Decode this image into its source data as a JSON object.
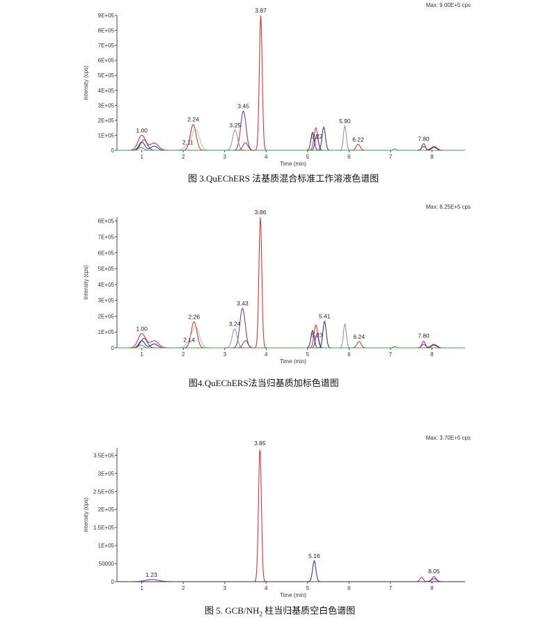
{
  "captions": {
    "fig3": "图  3.QuEChERS 法基质混合标准工作溶液色谱图",
    "fig4": "图4.QuEChERS法当归基质加标色谱图",
    "fig5_pre": "图  5. GCB/NH",
    "fig5_sub": "2",
    "fig5_post": " 柱当归基质空白色谱图"
  },
  "colors": {
    "red": "#c8202c",
    "purple": "#6a2a8a",
    "navy": "#23236e",
    "blue": "#3a3aa8",
    "green": "#2e9a4a",
    "gray": "#8a8a8a",
    "lightgray": "#b9b9b9",
    "orange": "#d88a48",
    "lightgreen": "#9fc79a"
  },
  "chart_data": [
    {
      "type": "line",
      "max_label": "Max: 9.00E+5 cps",
      "xlabel": "Time (min)",
      "ylabel": "Intensity (cps)",
      "xlim": [
        0.4,
        8.8
      ],
      "ylim": [
        0,
        900000
      ],
      "x_ticks": [
        1,
        2,
        3,
        4,
        5,
        6,
        7,
        8
      ],
      "y_ticks": [
        0,
        100000,
        200000,
        300000,
        400000,
        500000,
        600000,
        700000,
        800000,
        900000
      ],
      "y_tick_labels": [
        "0",
        "1E+05",
        "2E+05",
        "3E+05",
        "4E+05",
        "5E+05",
        "6E+05",
        "7E+05",
        "8E+05",
        "9E+05"
      ],
      "peak_labels": [
        {
          "label": "1.00",
          "x": 1.0,
          "y": 100000
        },
        {
          "label": "2.11",
          "x": 2.11,
          "y": 20000
        },
        {
          "label": "2.24",
          "x": 2.24,
          "y": 175000
        },
        {
          "label": "3.25",
          "x": 3.25,
          "y": 135000
        },
        {
          "label": "3.45",
          "x": 3.45,
          "y": 262000
        },
        {
          "label": "3.87",
          "x": 3.87,
          "y": 900000
        },
        {
          "label": "5.22",
          "x": 5.22,
          "y": 60000
        },
        {
          "label": "5.90",
          "x": 5.9,
          "y": 162000
        },
        {
          "label": "6.22",
          "x": 6.22,
          "y": 40000
        },
        {
          "label": "7.80",
          "x": 7.8,
          "y": 45000
        }
      ],
      "series": [
        {
          "color": "red",
          "peaks": [
            [
              1.0,
              100000,
              0.09
            ],
            [
              1.3,
              48000,
              0.1
            ],
            [
              2.24,
              172000,
              0.07
            ],
            [
              3.5,
              50000,
              0.06
            ],
            [
              3.87,
              900000,
              0.035
            ],
            [
              5.2,
              150000,
              0.045
            ],
            [
              6.22,
              40000,
              0.05
            ],
            [
              7.8,
              25000,
              0.05
            ],
            [
              8.05,
              25000,
              0.07
            ]
          ]
        },
        {
          "color": "purple",
          "peaks": [
            [
              1.05,
              70000,
              0.08
            ],
            [
              3.45,
              262000,
              0.065
            ],
            [
              5.22,
              100000,
              0.04
            ],
            [
              7.8,
              45000,
              0.04
            ]
          ]
        },
        {
          "color": "navy",
          "peaks": [
            [
              1.0,
              55000,
              0.07
            ],
            [
              1.3,
              28000,
              0.08
            ],
            [
              5.12,
              120000,
              0.04
            ],
            [
              5.39,
              155000,
              0.04
            ],
            [
              8.05,
              20000,
              0.06
            ]
          ]
        },
        {
          "color": "gray",
          "peaks": [
            [
              3.25,
              135000,
              0.06
            ],
            [
              5.9,
              162000,
              0.035
            ]
          ]
        },
        {
          "color": "lightgray",
          "peaks": [
            [
              2.11,
              28000,
              0.09
            ],
            [
              2.3,
              140000,
              0.09
            ]
          ]
        },
        {
          "color": "green",
          "peaks": [
            [
              0.98,
              20000,
              0.06
            ],
            [
              7.1,
              10000,
              0.03
            ]
          ]
        }
      ]
    },
    {
      "type": "line",
      "max_label": "Max: 8.25E+5 cps",
      "xlabel": "Time (min)",
      "ylabel": "Intensity (cps)",
      "xlim": [
        0.4,
        8.8
      ],
      "ylim": [
        0,
        825000
      ],
      "x_ticks": [
        1,
        2,
        3,
        4,
        5,
        6,
        7,
        8
      ],
      "y_ticks": [
        0,
        100000,
        200000,
        300000,
        400000,
        500000,
        600000,
        700000,
        800000
      ],
      "y_tick_labels": [
        "0",
        "1E+05",
        "2E+05",
        "3E+05",
        "4E+05",
        "5E+05",
        "6E+05",
        "7E+05",
        "8E+05"
      ],
      "peak_labels": [
        {
          "label": "1.00",
          "x": 1.0,
          "y": 90000
        },
        {
          "label": "2.14",
          "x": 2.14,
          "y": 20000
        },
        {
          "label": "2.26",
          "x": 2.26,
          "y": 165000
        },
        {
          "label": "3.24",
          "x": 3.24,
          "y": 120000
        },
        {
          "label": "3.43",
          "x": 3.43,
          "y": 250000
        },
        {
          "label": "3.86",
          "x": 3.86,
          "y": 825000
        },
        {
          "label": "5.23",
          "x": 5.23,
          "y": 50000
        },
        {
          "label": "5.41",
          "x": 5.41,
          "y": 168000
        },
        {
          "label": "6.24",
          "x": 6.24,
          "y": 40000
        },
        {
          "label": "7.80",
          "x": 7.8,
          "y": 45000
        }
      ],
      "series": [
        {
          "color": "red",
          "peaks": [
            [
              1.0,
              90000,
              0.09
            ],
            [
              1.3,
              45000,
              0.1
            ],
            [
              2.26,
              165000,
              0.07
            ],
            [
              3.5,
              45000,
              0.06
            ],
            [
              3.86,
              825000,
              0.035
            ],
            [
              5.2,
              145000,
              0.045
            ],
            [
              6.24,
              40000,
              0.05
            ],
            [
              7.8,
              22000,
              0.05
            ],
            [
              8.05,
              22000,
              0.07
            ]
          ]
        },
        {
          "color": "purple",
          "peaks": [
            [
              1.05,
              60000,
              0.08
            ],
            [
              3.43,
              250000,
              0.065
            ],
            [
              5.23,
              90000,
              0.04
            ],
            [
              7.8,
              42000,
              0.04
            ]
          ]
        },
        {
          "color": "navy",
          "peaks": [
            [
              1.0,
              45000,
              0.07
            ],
            [
              1.3,
              25000,
              0.08
            ],
            [
              5.12,
              110000,
              0.04
            ],
            [
              5.41,
              168000,
              0.04
            ],
            [
              8.05,
              18000,
              0.06
            ]
          ]
        },
        {
          "color": "gray",
          "peaks": [
            [
              3.24,
              120000,
              0.06
            ],
            [
              5.9,
              150000,
              0.035
            ]
          ]
        },
        {
          "color": "lightgray",
          "peaks": [
            [
              2.14,
              25000,
              0.09
            ],
            [
              2.3,
              130000,
              0.09
            ]
          ]
        },
        {
          "color": "green",
          "peaks": [
            [
              0.98,
              18000,
              0.06
            ],
            [
              7.1,
              9000,
              0.03
            ]
          ]
        }
      ]
    },
    {
      "type": "line",
      "max_label": "Max: 3.70E+5 cps",
      "xlabel": "Time (min)",
      "ylabel": "Intensity (cps)",
      "xlim": [
        0.4,
        8.8
      ],
      "ylim": [
        0,
        370000
      ],
      "x_ticks": [
        1,
        2,
        3,
        4,
        5,
        6,
        7,
        8
      ],
      "y_ticks": [
        0,
        50000,
        100000,
        150000,
        200000,
        250000,
        300000,
        350000
      ],
      "y_tick_labels": [
        "0",
        "50000",
        "1E+05",
        "1.5E+05",
        "2E+05",
        "2.5E+05",
        "3E+05",
        "3.5E+05"
      ],
      "peak_labels": [
        {
          "label": "1.23",
          "x": 1.23,
          "y": 6000
        },
        {
          "label": "3.85",
          "x": 3.85,
          "y": 370000
        },
        {
          "label": "5.16",
          "x": 5.16,
          "y": 58000
        },
        {
          "label": "8.05",
          "x": 8.05,
          "y": 15000
        }
      ],
      "series": [
        {
          "color": "red",
          "peaks": [
            [
              3.85,
              370000,
              0.035
            ],
            [
              7.75,
              12000,
              0.04
            ],
            [
              8.05,
              8000,
              0.06
            ]
          ]
        },
        {
          "color": "purple",
          "peaks": [
            [
              1.25,
              6000,
              0.15
            ],
            [
              8.05,
              14000,
              0.05
            ]
          ]
        },
        {
          "color": "navy",
          "peaks": [
            [
              5.16,
              58000,
              0.04
            ]
          ]
        }
      ]
    }
  ]
}
